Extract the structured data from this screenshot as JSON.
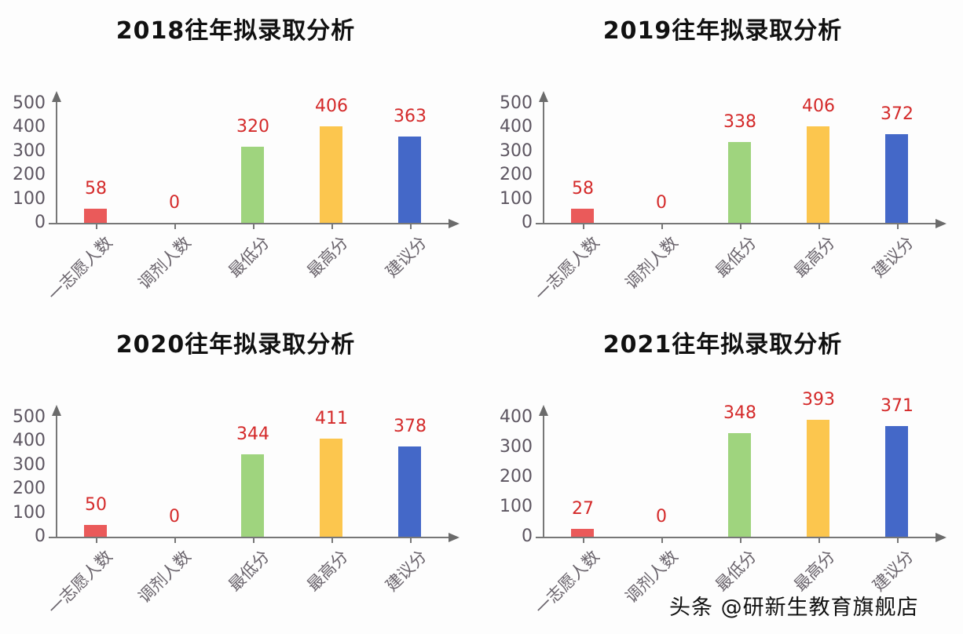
{
  "chart_data": [
    {
      "type": "bar",
      "title": "2018往年拟录取分析",
      "categories": [
        "一志愿人数",
        "调剂人数",
        "最低分",
        "最高分",
        "建议分"
      ],
      "values": [
        58,
        0,
        320,
        406,
        363
      ],
      "colors": [
        "#ea5a5a",
        "#ea5a5a",
        "#9fd47e",
        "#fcc64e",
        "#4468c8"
      ],
      "yticks": [
        "0",
        "100",
        "200",
        "300",
        "400",
        "500"
      ],
      "ylim": [
        0,
        500
      ],
      "xlabel": "",
      "ylabel": "",
      "grid": false
    },
    {
      "type": "bar",
      "title": "2019往年拟录取分析",
      "categories": [
        "一志愿人数",
        "调剂人数",
        "最低分",
        "最高分",
        "建议分"
      ],
      "values": [
        58,
        0,
        338,
        406,
        372
      ],
      "colors": [
        "#ea5a5a",
        "#ea5a5a",
        "#9fd47e",
        "#fcc64e",
        "#4468c8"
      ],
      "yticks": [
        "0",
        "100",
        "200",
        "300",
        "400",
        "500"
      ],
      "ylim": [
        0,
        500
      ],
      "xlabel": "",
      "ylabel": "",
      "grid": false
    },
    {
      "type": "bar",
      "title": "2020往年拟录取分析",
      "categories": [
        "一志愿人数",
        "调剂人数",
        "最低分",
        "最高分",
        "建议分"
      ],
      "values": [
        50,
        0,
        344,
        411,
        378
      ],
      "colors": [
        "#ea5a5a",
        "#ea5a5a",
        "#9fd47e",
        "#fcc64e",
        "#4468c8"
      ],
      "yticks": [
        "0",
        "100",
        "200",
        "300",
        "400",
        "500"
      ],
      "ylim": [
        0,
        500
      ],
      "xlabel": "",
      "ylabel": "",
      "grid": false
    },
    {
      "type": "bar",
      "title": "2021往年拟录取分析",
      "categories": [
        "一志愿人数",
        "调剂人数",
        "最低分",
        "最高分",
        "建议分"
      ],
      "values": [
        27,
        0,
        348,
        393,
        371
      ],
      "colors": [
        "#ea5a5a",
        "#ea5a5a",
        "#9fd47e",
        "#fcc64e",
        "#4468c8"
      ],
      "yticks": [
        "0",
        "100",
        "200",
        "300",
        "400"
      ],
      "ylim": [
        0,
        400
      ],
      "xlabel": "",
      "ylabel": "",
      "grid": false
    }
  ],
  "watermark": "头条 @研新生教育旗舰店"
}
